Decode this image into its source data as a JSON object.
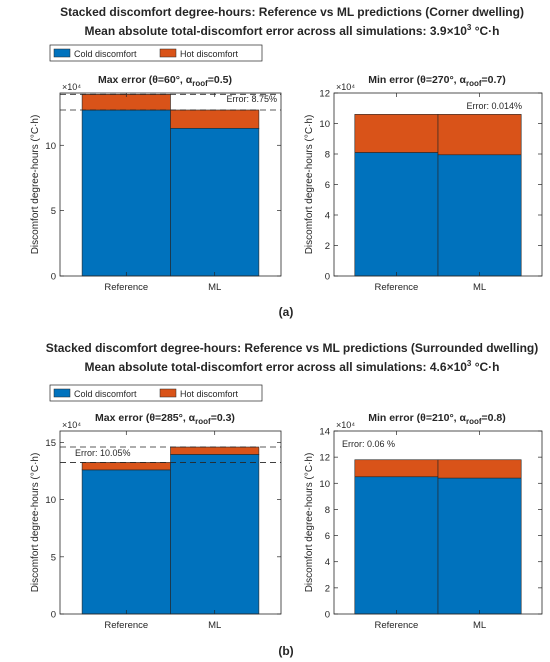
{
  "figure_a": {
    "title_line1": "Stacked discomfort degree-hours: Reference vs ML predictions (Corner dwelling)",
    "title_line2_prefix": "Mean absolute total-discomfort error across all simulations: 3.9",
    "title_line2_exp": "3",
    "title_line2_unit": "°C·h",
    "caption": "(a)",
    "legend": [
      "Cold discomfort",
      "Hot discomfort"
    ]
  },
  "figure_b": {
    "title_line1": "Stacked discomfort degree-hours: Reference vs ML predictions (Surrounded dwelling)",
    "title_line2_prefix": "Mean absolute total-discomfort error across all simulations: 4.6",
    "title_line2_exp": "3",
    "title_line2_unit": "°C·h",
    "caption": "(b)",
    "legend": [
      "Cold discomfort",
      "Hot discomfort"
    ]
  },
  "colors": {
    "cold": "#0072BD",
    "hot": "#D95319"
  },
  "chart_data": [
    {
      "type": "bar",
      "stacked": true,
      "panel": "a-left",
      "title_prefix": "Max error (θ=60°, α",
      "title_sub": "roof",
      "title_suffix": "=0.5)",
      "categories": [
        "Reference",
        "ML"
      ],
      "series": [
        {
          "name": "Cold discomfort",
          "values": [
            12.7,
            11.3
          ]
        },
        {
          "name": "Hot discomfort",
          "values": [
            1.2,
            1.4
          ]
        }
      ],
      "ylabel": "Discomfort degree-hours (°C·h)",
      "exponent_label": "×10⁴",
      "ylim": [
        0,
        14
      ],
      "yticks": [
        0,
        5,
        10
      ],
      "annotation": "Error: 8.75%",
      "dashed_lines": [
        13.9,
        12.7
      ]
    },
    {
      "type": "bar",
      "stacked": true,
      "panel": "a-right",
      "title_prefix": "Min error (θ=270°, α",
      "title_sub": "roof",
      "title_suffix": "=0.7)",
      "categories": [
        "Reference",
        "ML"
      ],
      "series": [
        {
          "name": "Cold discomfort",
          "values": [
            8.1,
            7.95
          ]
        },
        {
          "name": "Hot discomfort",
          "values": [
            2.5,
            2.65
          ]
        }
      ],
      "ylabel": "Discomfort degree-hours (°C·h)",
      "exponent_label": "×10⁴",
      "ylim": [
        0,
        12
      ],
      "yticks": [
        0,
        2,
        4,
        6,
        8,
        10,
        12
      ],
      "annotation": "Error: 0.014%",
      "dashed_lines": []
    },
    {
      "type": "bar",
      "stacked": true,
      "panel": "b-left",
      "title_prefix": "Max error (θ=285°, α",
      "title_sub": "roof",
      "title_suffix": "=0.3)",
      "categories": [
        "Reference",
        "ML"
      ],
      "series": [
        {
          "name": "Cold discomfort",
          "values": [
            12.6,
            13.95
          ]
        },
        {
          "name": "Hot discomfort",
          "values": [
            0.65,
            0.65
          ]
        }
      ],
      "ylabel": "Discomfort degree-hours (°C·h)",
      "exponent_label": "×10⁴",
      "ylim": [
        0,
        16
      ],
      "yticks": [
        0,
        5,
        10,
        15
      ],
      "annotation": "Error: 10.05%",
      "dashed_lines": [
        14.6,
        13.25
      ]
    },
    {
      "type": "bar",
      "stacked": true,
      "panel": "b-right",
      "title_prefix": "Min error (θ=210°, α",
      "title_sub": "roof",
      "title_suffix": "=0.8)",
      "categories": [
        "Reference",
        "ML"
      ],
      "series": [
        {
          "name": "Cold discomfort",
          "values": [
            10.5,
            10.4
          ]
        },
        {
          "name": "Hot discomfort",
          "values": [
            1.3,
            1.4
          ]
        }
      ],
      "ylabel": "Discomfort degree-hours (°C·h)",
      "exponent_label": "×10⁴",
      "ylim": [
        0,
        14
      ],
      "yticks": [
        0,
        2,
        4,
        6,
        8,
        10,
        12,
        14
      ],
      "annotation": "Error: 0.06 %",
      "dashed_lines": []
    }
  ]
}
